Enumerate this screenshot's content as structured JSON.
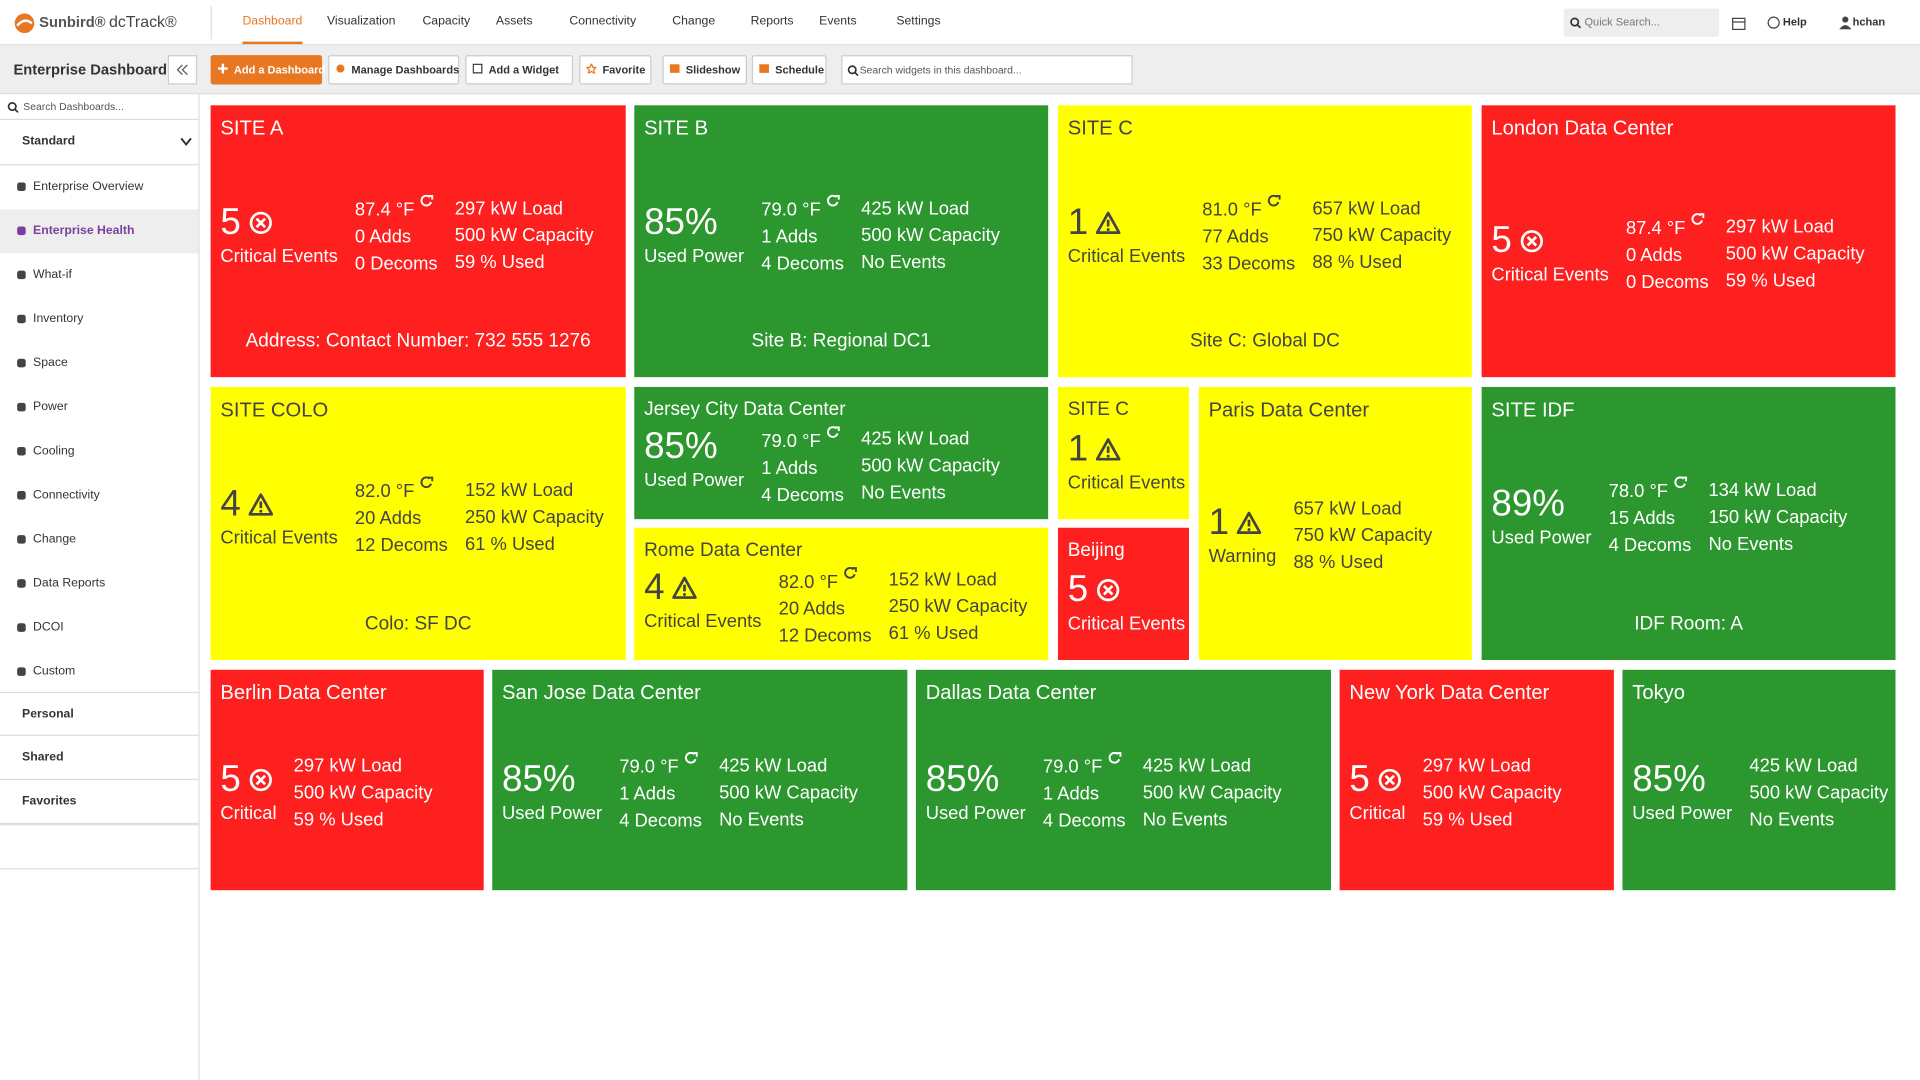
{
  "nav": {
    "brand": "Sunbird®",
    "product": "dcTrack®",
    "items": [
      "Dashboard",
      "Visualization",
      "Capacity",
      "Assets",
      "Connectivity",
      "Change",
      "Reports",
      "Events",
      "Settings"
    ],
    "active_index": 0,
    "search": "Quick Search...",
    "help": "Help",
    "user": "hchan"
  },
  "toolbar": {
    "title": "Enterprise Dashboard",
    "buttons": [
      "Add a Dashboard",
      "Manage Dashboards",
      "Add a Widget",
      "Favorite",
      "Slideshow",
      "Schedule"
    ],
    "search": "Search widgets in this dashboard..."
  },
  "sidebar": {
    "search": "Search Dashboards...",
    "section": "Standard",
    "items": [
      "Enterprise Overview",
      "Enterprise Health",
      "What-if",
      "Inventory",
      "Space",
      "Power",
      "Cooling",
      "Connectivity",
      "Change",
      "Data Reports",
      "DCOI",
      "Custom"
    ],
    "active_index": 1,
    "groups": [
      "Personal",
      "Shared",
      "Favorites"
    ]
  },
  "widgets": [
    {
      "title": "SITE A",
      "color": "#fe1f1f",
      "text_color": "#ffffff",
      "value": "5",
      "icon": "error",
      "label": "Critical Events",
      "temp_icon": true,
      "columns": [
        [
          "87.4 °F",
          "0 Adds",
          "0 Decoms"
        ],
        [
          "297 kW Load",
          "500 kW Capacity",
          "59 % Used"
        ]
      ],
      "footer": "Address: Contact Number: 732 555 1276"
    },
    {
      "title": "SITE B",
      "color": "#2c962f",
      "text_color": "#ffffff",
      "value": "85%",
      "label": "Used Power",
      "temp_icon": true,
      "columns": [
        [
          "79.0 °F",
          "1 Adds",
          "4 Decoms"
        ],
        [
          "425 kW Load",
          "500 kW Capacity",
          "No Events"
        ]
      ],
      "footer": "Site B: Regional DC1"
    },
    {
      "title": "SITE C",
      "color": "#ffff00",
      "text_color": "#444444",
      "value": "1",
      "icon": "warning",
      "label": "Critical Events",
      "temp_icon": true,
      "columns": [
        [
          "81.0 °F",
          "77 Adds",
          "33 Decoms"
        ],
        [
          "657 kW Load",
          "750 kW Capacity",
          "88 % Used"
        ]
      ],
      "footer": "Site C: Global DC"
    },
    {
      "title": "London Data Center",
      "color": "#fe1f1f",
      "text_color": "#ffffff",
      "value": "5",
      "icon": "error",
      "label": "Critical Events",
      "temp_icon": true,
      "columns": [
        [
          "87.4 °F",
          "0 Adds",
          "0 Decoms"
        ],
        [
          "297 kW Load",
          "500 kW Capacity",
          "59 % Used"
        ]
      ]
    },
    {
      "title": "SITE COLO",
      "color": "#ffff00",
      "text_color": "#444444",
      "value": "4",
      "icon": "warning",
      "label": "Critical Events",
      "temp_icon": true,
      "columns": [
        [
          "82.0 °F",
          "20 Adds",
          "12 Decoms"
        ],
        [
          "152 kW Load",
          "250 kW Capacity",
          "61 % Used"
        ]
      ],
      "footer": "Colo: SF DC"
    },
    {
      "title": "Jersey City Data Center",
      "color": "#2c962f",
      "text_color": "#ffffff",
      "value": "85%",
      "label": "Used Power",
      "temp_icon": true,
      "columns": [
        [
          "79.0 °F",
          "1 Adds",
          "4 Decoms"
        ],
        [
          "425 kW Load",
          "500 kW Capacity",
          "No Events"
        ]
      ]
    },
    {
      "title": "Rome Data Center",
      "color": "#ffff00",
      "text_color": "#444444",
      "value": "4",
      "icon": "warning",
      "label": "Critical Events",
      "temp_icon": true,
      "columns": [
        [
          "82.0 °F",
          "20 Adds",
          "12 Decoms"
        ],
        [
          "152 kW Load",
          "250 kW Capacity",
          "61 % Used"
        ]
      ]
    },
    {
      "title": "SITE C",
      "color": "#ffff00",
      "text_color": "#444444",
      "value": "1",
      "icon": "warning",
      "label": "Critical Events"
    },
    {
      "title": "Beijing",
      "color": "#fe1f1f",
      "text_color": "#ffffff",
      "value": "5",
      "icon": "error",
      "label": "Critical Events"
    },
    {
      "title": "Paris Data Center",
      "color": "#ffff00",
      "text_color": "#444444",
      "value": "1",
      "icon": "warning",
      "label": "Warning",
      "columns": [
        [
          "657 kW Load",
          "750 kW Capacity",
          "88 % Used"
        ]
      ]
    },
    {
      "title": "SITE IDF",
      "color": "#2c962f",
      "text_color": "#ffffff",
      "value": "89%",
      "label": "Used Power",
      "temp_icon": true,
      "columns": [
        [
          "78.0 °F",
          "15 Adds",
          "4 Decoms"
        ],
        [
          "134 kW Load",
          "150 kW Capacity",
          "No Events"
        ]
      ],
      "footer": "IDF Room: A"
    },
    {
      "title": "Berlin Data Center",
      "color": "#fe1f1f",
      "text_color": "#ffffff",
      "value": "5",
      "icon": "error",
      "label": "Critical",
      "columns": [
        [
          "297 kW Load",
          "500 kW Capacity",
          "59 % Used"
        ]
      ]
    },
    {
      "title": "San Jose Data Center",
      "color": "#2c962f",
      "text_color": "#ffffff",
      "value": "85%",
      "label": "Used Power",
      "temp_icon": true,
      "columns": [
        [
          "79.0 °F",
          "1 Adds",
          "4 Decoms"
        ],
        [
          "425 kW Load",
          "500 kW Capacity",
          "No Events"
        ]
      ]
    },
    {
      "title": "Dallas Data Center",
      "color": "#2c962f",
      "text_color": "#ffffff",
      "value": "85%",
      "label": "Used Power",
      "temp_icon": true,
      "columns": [
        [
          "79.0 °F",
          "1 Adds",
          "4 Decoms"
        ],
        [
          "425 kW Load",
          "500 kW Capacity",
          "No Events"
        ]
      ]
    },
    {
      "title": "New York Data Center",
      "color": "#fe1f1f",
      "text_color": "#ffffff",
      "value": "5",
      "icon": "error",
      "label": "Critical",
      "columns": [
        [
          "297 kW Load",
          "500 kW Capacity",
          "59 % Used"
        ]
      ]
    },
    {
      "title": "Tokyo",
      "color": "#2c962f",
      "text_color": "#ffffff",
      "value": "85%",
      "label": "Used Power",
      "columns": [
        [
          "425 kW Load",
          "500 kW Capacity",
          "No Events"
        ]
      ]
    }
  ]
}
